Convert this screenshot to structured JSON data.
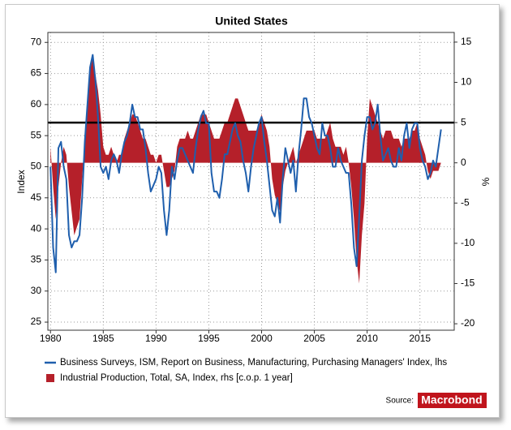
{
  "chart_data": {
    "type": "line",
    "title": "United States",
    "y_label": "Index",
    "y2_label": "%",
    "source_label": "Source:",
    "source": "Macrobond",
    "xlim": [
      1979.75,
      2018.25
    ],
    "xticks": [
      1980,
      1985,
      1990,
      1995,
      2000,
      2005,
      2010,
      2015
    ],
    "ylim": [
      23.7,
      71.6
    ],
    "yticks": [
      25,
      30,
      35,
      40,
      45,
      50,
      55,
      60,
      65,
      70
    ],
    "y2lim": [
      -20.8,
      16.2
    ],
    "y2ticks": [
      -20,
      -15,
      -10,
      -5,
      0,
      5,
      10,
      15
    ],
    "grid": true,
    "reference_line": {
      "value": 5,
      "axis": "y2",
      "color": "#000000"
    },
    "x": [
      1980,
      1980.25,
      1980.5,
      1980.75,
      1981,
      1981.25,
      1981.5,
      1981.75,
      1982,
      1982.25,
      1982.5,
      1982.75,
      1983,
      1983.25,
      1983.5,
      1983.75,
      1984,
      1984.25,
      1984.5,
      1984.75,
      1985,
      1985.25,
      1985.5,
      1985.75,
      1986,
      1986.25,
      1986.5,
      1986.75,
      1987,
      1987.25,
      1987.5,
      1987.75,
      1988,
      1988.25,
      1988.5,
      1988.75,
      1989,
      1989.25,
      1989.5,
      1989.75,
      1990,
      1990.25,
      1990.5,
      1990.75,
      1991,
      1991.25,
      1991.5,
      1991.75,
      1992,
      1992.25,
      1992.5,
      1992.75,
      1993,
      1993.25,
      1993.5,
      1993.75,
      1994,
      1994.25,
      1994.5,
      1994.75,
      1995,
      1995.25,
      1995.5,
      1995.75,
      1996,
      1996.25,
      1996.5,
      1996.75,
      1997,
      1997.25,
      1997.5,
      1997.75,
      1998,
      1998.25,
      1998.5,
      1998.75,
      1999,
      1999.25,
      1999.5,
      1999.75,
      2000,
      2000.25,
      2000.5,
      2000.75,
      2001,
      2001.25,
      2001.5,
      2001.75,
      2002,
      2002.25,
      2002.5,
      2002.75,
      2003,
      2003.25,
      2003.5,
      2003.75,
      2004,
      2004.25,
      2004.5,
      2004.75,
      2005,
      2005.25,
      2005.5,
      2005.75,
      2006,
      2006.25,
      2006.5,
      2006.75,
      2007,
      2007.25,
      2007.5,
      2007.75,
      2008,
      2008.25,
      2008.5,
      2008.75,
      2009,
      2009.25,
      2009.5,
      2009.75,
      2010,
      2010.25,
      2010.5,
      2010.75,
      2011,
      2011.25,
      2011.5,
      2011.75,
      2012,
      2012.25,
      2012.5,
      2012.75,
      2013,
      2013.25,
      2013.5,
      2013.75,
      2014,
      2014.25,
      2014.5,
      2014.75,
      2015,
      2015.25,
      2015.5,
      2015.75,
      2016,
      2016.25,
      2016.5,
      2016.75,
      2017
    ],
    "series": [
      {
        "name": "Business Surveys, ISM, Report on Business, Manufacturing, Purchasing Managers' Index, lhs",
        "color": "#1f5fad",
        "axis": "y",
        "kind": "line",
        "values": [
          50,
          37,
          33,
          53,
          54,
          50,
          48,
          39,
          37,
          38,
          38,
          39,
          45,
          54,
          60,
          66,
          68,
          64,
          58,
          50,
          49,
          50,
          48,
          51,
          52,
          51,
          49,
          52,
          54,
          55,
          57,
          60,
          58,
          58,
          56,
          56,
          53,
          49,
          46,
          47,
          48,
          50,
          49,
          43,
          39,
          43,
          50,
          48,
          51,
          53,
          53,
          52,
          51,
          50,
          49,
          53,
          56,
          58,
          59,
          57,
          57,
          49,
          46,
          46,
          45,
          48,
          52,
          52,
          54,
          56,
          57,
          55,
          54,
          51,
          49,
          46,
          50,
          53,
          55,
          57,
          58,
          54,
          51,
          47,
          43,
          42,
          45,
          41,
          48,
          53,
          51,
          49,
          51,
          46,
          52,
          56,
          61,
          61,
          58,
          57,
          55,
          53,
          52,
          57,
          55,
          55,
          53,
          50,
          50,
          53,
          51,
          50,
          49,
          49,
          44,
          37,
          34,
          42,
          51,
          55,
          58,
          58,
          56,
          57,
          60,
          55,
          51,
          52,
          53,
          51,
          50,
          50,
          53,
          51,
          55,
          57,
          53,
          56,
          57,
          57,
          53,
          51,
          50,
          48,
          49,
          51,
          50,
          53,
          56
        ]
      },
      {
        "name": "Industrial Production, Total, SA, Index, rhs [c.o.p. 1 year]",
        "color": "#b5202a",
        "axis": "y2",
        "kind": "area",
        "values": [
          2,
          -3,
          -7,
          -3,
          0,
          2,
          1,
          -3,
          -6,
          -9,
          -8,
          -7,
          -2,
          3,
          8,
          12,
          13,
          11,
          9,
          6,
          2,
          1,
          1,
          2,
          1,
          0,
          1,
          1,
          3,
          4,
          5,
          6,
          6,
          5,
          4,
          3,
          3,
          2,
          1,
          1,
          0,
          1,
          1,
          -1,
          -3,
          -3,
          -2,
          -1,
          2,
          3,
          3,
          3,
          4,
          3,
          3,
          4,
          5,
          6,
          6,
          6,
          5,
          4,
          3,
          3,
          3,
          4,
          5,
          5,
          6,
          7,
          8,
          8,
          7,
          6,
          5,
          4,
          4,
          4,
          4,
          5,
          6,
          5,
          4,
          2,
          -2,
          -4,
          -5,
          -6,
          -3,
          -1,
          0,
          1,
          2,
          0,
          1,
          2,
          3,
          4,
          4,
          4,
          4,
          3,
          3,
          3,
          3,
          4,
          5,
          3,
          2,
          2,
          2,
          1,
          2,
          0,
          -3,
          -7,
          -12,
          -15,
          -9,
          -5,
          3,
          8,
          7,
          6,
          5,
          4,
          3,
          4,
          4,
          4,
          3,
          3,
          3,
          2,
          3,
          3,
          3,
          4,
          4,
          5,
          3,
          2,
          1,
          -1,
          -2,
          -1,
          -1,
          -1,
          0
        ]
      }
    ]
  }
}
